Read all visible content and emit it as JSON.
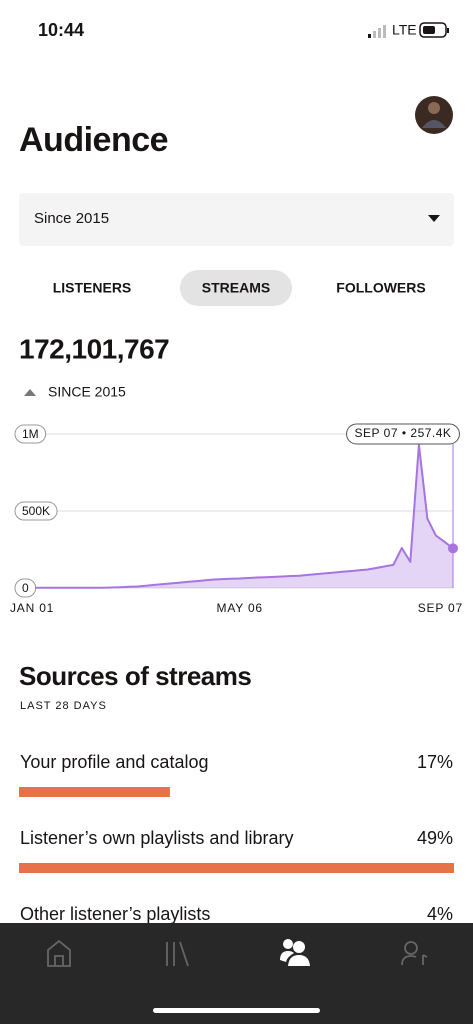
{
  "status_bar": {
    "time": "10:44",
    "network": "LTE"
  },
  "header": {
    "title": "Audience"
  },
  "filter": {
    "selected": "Since 2015"
  },
  "tabs": [
    "LISTENERS",
    "STREAMS",
    "FOLLOWERS"
  ],
  "active_tab": 1,
  "total": {
    "value": "172,101,767",
    "change_label": "SINCE 2015"
  },
  "chart": {
    "type": "area",
    "color": "#a774e0",
    "ylim": [
      0,
      1000000
    ],
    "yticks": [
      0,
      {
        "value": 500000,
        "label": "500K"
      },
      {
        "value": 1000000,
        "label": "1M"
      }
    ],
    "tooltip": "SEP 07 • 257.4K",
    "categories": [
      "JAN 01",
      null,
      null,
      null,
      null,
      null,
      null,
      null,
      null,
      null,
      null,
      null,
      null,
      null,
      null,
      null,
      null,
      null,
      null,
      null,
      null,
      null,
      null,
      null,
      "MAY 06",
      null,
      null,
      null,
      null,
      null,
      null,
      null,
      null,
      null,
      null,
      null,
      null,
      null,
      null,
      null,
      null,
      null,
      null,
      null,
      null,
      null,
      null,
      null,
      null,
      "SEP 07"
    ],
    "values": [
      2000,
      2000,
      2000,
      2000,
      2000,
      2000,
      2000,
      2000,
      2000,
      3000,
      5000,
      8000,
      10000,
      15000,
      20000,
      25000,
      30000,
      35000,
      40000,
      45000,
      50000,
      55000,
      58000,
      60000,
      62000,
      65000,
      68000,
      70000,
      72000,
      75000,
      78000,
      80000,
      85000,
      90000,
      95000,
      100000,
      105000,
      110000,
      115000,
      120000,
      130000,
      140000,
      150000,
      260000,
      170000,
      930000,
      450000,
      340000,
      300000,
      257400
    ]
  },
  "sources": {
    "title": "Sources of streams",
    "subtitle": "LAST 28 DAYS",
    "color": "#e9714a",
    "labels": [
      "Your profile and catalog",
      "Listener’s own playlists and library",
      "Other listener’s playlists"
    ],
    "values": [
      17,
      49,
      4
    ],
    "value_labels": [
      "17%",
      "49%",
      "4%"
    ]
  }
}
